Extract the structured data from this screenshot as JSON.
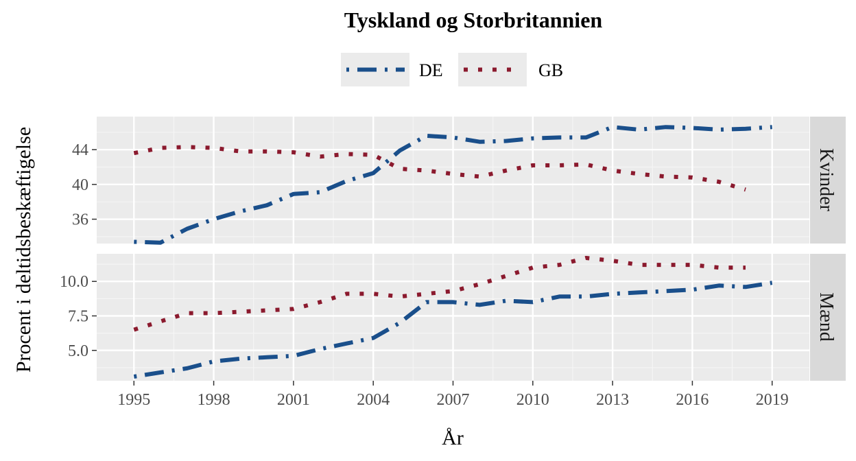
{
  "chart_data": {
    "type": "line",
    "title": "Tysk­land og Storbritannien",
    "xlabel": "År",
    "ylabel": "Procent i deltidsbeskæftigelse",
    "x": [
      1995,
      1996,
      1997,
      1998,
      1999,
      2000,
      2001,
      2002,
      2003,
      2004,
      2005,
      2006,
      2007,
      2008,
      2009,
      2010,
      2011,
      2012,
      2013,
      2014,
      2015,
      2016,
      2017,
      2018,
      2019
    ],
    "x_ticks": [
      "1995",
      "1998",
      "2001",
      "2004",
      "2007",
      "2010",
      "2013",
      "2016",
      "2019"
    ],
    "xlim": [
      1993.6,
      2020.4
    ],
    "legend": {
      "position": "top",
      "entries": [
        "DE",
        "GB"
      ]
    },
    "colors": {
      "DE": "#1a4f8b",
      "GB": "#8b1a2e"
    },
    "grid": true,
    "panels": [
      {
        "strip": "Kvinder",
        "ylim": [
          33.2,
          47.8
        ],
        "y_ticks": [
          "36",
          "40",
          "44"
        ],
        "y_tick_values": [
          36,
          40,
          44
        ],
        "series": [
          {
            "name": "DE",
            "values": [
              33.4,
              33.3,
              34.9,
              36.0,
              36.9,
              37.6,
              38.9,
              39.1,
              40.4,
              41.3,
              43.9,
              45.6,
              45.4,
              44.9,
              45.0,
              45.3,
              45.4,
              45.4,
              46.6,
              46.3,
              46.6,
              46.5,
              46.3,
              46.4,
              46.6
            ]
          },
          {
            "name": "GB",
            "values": [
              43.6,
              44.2,
              44.3,
              44.2,
              43.8,
              43.8,
              43.7,
              43.2,
              43.5,
              43.4,
              41.8,
              41.6,
              41.2,
              40.9,
              41.6,
              42.2,
              42.2,
              42.3,
              41.6,
              41.2,
              40.9,
              40.8,
              40.3,
              39.4,
              null
            ]
          }
        ]
      },
      {
        "strip": "Mænd",
        "ylim": [
          2.8,
          12.0
        ],
        "y_ticks": [
          "5.0",
          "7.5",
          "10.0"
        ],
        "y_tick_values": [
          5.0,
          7.5,
          10.0
        ],
        "series": [
          {
            "name": "DE",
            "values": [
              3.1,
              3.4,
              3.7,
              4.2,
              4.4,
              4.5,
              4.6,
              5.1,
              5.5,
              5.9,
              7.0,
              8.5,
              8.5,
              8.3,
              8.6,
              8.5,
              8.9,
              8.9,
              9.1,
              9.2,
              9.3,
              9.4,
              9.7,
              9.6,
              9.9
            ]
          },
          {
            "name": "GB",
            "values": [
              6.5,
              7.1,
              7.7,
              7.7,
              7.8,
              7.9,
              8.0,
              8.5,
              9.1,
              9.1,
              8.9,
              9.1,
              9.3,
              9.8,
              10.4,
              11.0,
              11.2,
              11.7,
              11.5,
              11.2,
              11.2,
              11.2,
              11.0,
              11.0,
              null
            ]
          }
        ]
      }
    ]
  }
}
